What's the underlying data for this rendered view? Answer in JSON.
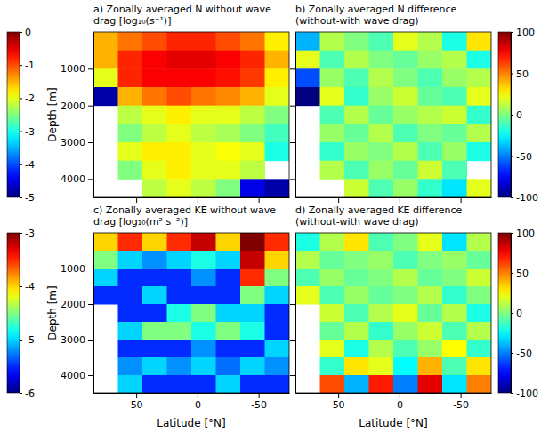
{
  "chart_data": [
    {
      "type": "heatmap",
      "title": "a) Zonally averaged N without wave drag [log₁₀(s⁻¹)]",
      "ylabel": "Depth [m]",
      "color": "jet",
      "tick_labels": "y",
      "xlim": [
        85,
        -75
      ],
      "ylim": [
        0,
        4500
      ],
      "xticks": [
        50,
        0,
        -50
      ],
      "yticks": [
        1000,
        2000,
        3000,
        4000
      ],
      "x": [
        75,
        55,
        35,
        15,
        -5,
        -25,
        -45,
        -65
      ],
      "y": [
        250,
        750,
        1250,
        1750,
        2250,
        2750,
        3250,
        3750,
        4250
      ],
      "z": [
        [
          -1.5,
          -1.2,
          -1.0,
          -0.8,
          -0.8,
          -1.0,
          -1.2,
          -1.8
        ],
        [
          -1.5,
          -0.8,
          -0.6,
          -0.5,
          -0.5,
          -0.6,
          -0.8,
          -1.5
        ],
        [
          -2.0,
          -0.8,
          -0.6,
          -0.6,
          -0.6,
          -0.7,
          -0.9,
          -1.8
        ],
        [
          -4.8,
          -1.5,
          -1.2,
          -1.0,
          -1.2,
          -1.3,
          -1.5,
          -2.0
        ],
        [
          null,
          -2.2,
          -2.0,
          -1.8,
          -2.0,
          -2.0,
          -2.2,
          -2.5
        ],
        [
          null,
          -2.5,
          -2.2,
          -2.0,
          -2.2,
          -2.3,
          -2.5,
          -2.8
        ],
        [
          null,
          -2.0,
          -1.8,
          -1.8,
          -2.0,
          -1.9,
          -2.0,
          -3.0
        ],
        [
          null,
          -2.5,
          -2.0,
          -1.8,
          -2.0,
          -2.0,
          -2.2,
          null
        ],
        [
          null,
          null,
          -2.2,
          -2.0,
          -2.2,
          -2.5,
          -4.5,
          -4.8
        ]
      ],
      "colorbar": {
        "range": [
          -5,
          0
        ],
        "ticks": [
          -5,
          -4,
          -3,
          -2,
          -1,
          0
        ]
      }
    },
    {
      "type": "heatmap",
      "title": "b) Zonally averaged N difference (without-with wave drag)",
      "color": "jet",
      "tick_labels": false,
      "xlim": [
        85,
        -75
      ],
      "ylim": [
        0,
        4500
      ],
      "xticks": [
        50,
        0,
        -50
      ],
      "yticks": [
        1000,
        2000,
        3000,
        4000
      ],
      "x": [
        75,
        55,
        35,
        15,
        -5,
        -25,
        -45,
        -65
      ],
      "y": [
        250,
        750,
        1250,
        1750,
        2250,
        2750,
        3250,
        3750,
        4250
      ],
      "z": [
        [
          -40,
          10,
          0,
          -10,
          20,
          10,
          -20,
          30
        ],
        [
          20,
          -10,
          10,
          0,
          -5,
          5,
          10,
          -20
        ],
        [
          -60,
          5,
          -10,
          10,
          0,
          -10,
          5,
          10
        ],
        [
          -100,
          20,
          -15,
          5,
          15,
          -5,
          -10,
          20
        ],
        [
          null,
          -10,
          10,
          -5,
          5,
          10,
          15,
          -15
        ],
        [
          null,
          5,
          -5,
          10,
          -10,
          0,
          -5,
          10
        ],
        [
          null,
          -15,
          5,
          0,
          10,
          -10,
          5,
          -20
        ],
        [
          null,
          10,
          -10,
          5,
          -5,
          15,
          -10,
          null
        ],
        [
          null,
          null,
          15,
          -10,
          5,
          -15,
          -30,
          20
        ]
      ],
      "colorbar": {
        "range": [
          -100,
          100
        ],
        "ticks": [
          -100,
          -50,
          0,
          50,
          100
        ]
      }
    },
    {
      "type": "heatmap",
      "title": "c) Zonally averaged KE without wave drag [log₁₀(m² s⁻²)]",
      "xlabel": "Latitude [°N]",
      "ylabel": "Depth [m]",
      "color": "jet",
      "xlim": [
        85,
        -75
      ],
      "ylim": [
        0,
        4500
      ],
      "xticks": [
        50,
        0,
        -50
      ],
      "yticks": [
        1000,
        2000,
        3000,
        4000
      ],
      "x": [
        75,
        55,
        35,
        15,
        -5,
        -25,
        -45,
        -65
      ],
      "y": [
        250,
        750,
        1250,
        1750,
        2250,
        2750,
        3250,
        3750,
        4250
      ],
      "z": [
        [
          -4.0,
          -3.5,
          -4.0,
          -3.5,
          -3.2,
          -4.0,
          -3.0,
          -3.5
        ],
        [
          -4.5,
          -5.0,
          -5.2,
          -5.0,
          -4.8,
          -5.0,
          -3.2,
          -4.0
        ],
        [
          -5.0,
          -5.5,
          -5.5,
          -5.5,
          -5.2,
          -5.5,
          -3.5,
          -4.5
        ],
        [
          -5.5,
          -5.5,
          -5.0,
          -5.5,
          -5.5,
          -5.5,
          -4.5,
          -5.0
        ],
        [
          null,
          -5.5,
          -5.5,
          -4.8,
          -4.5,
          -5.0,
          -5.0,
          -5.5
        ],
        [
          null,
          -5.0,
          -4.5,
          -4.5,
          -4.8,
          -4.5,
          -4.8,
          -5.5
        ],
        [
          null,
          -5.5,
          -5.5,
          -5.5,
          -5.2,
          -5.5,
          -5.5,
          -5.0
        ],
        [
          null,
          -5.2,
          -5.0,
          -5.2,
          -5.0,
          -5.3,
          -5.0,
          -5.2
        ],
        [
          null,
          -5.0,
          -5.5,
          -5.5,
          -5.5,
          -5.0,
          -5.5,
          -5.5
        ]
      ],
      "colorbar": {
        "range": [
          -6,
          -3
        ],
        "ticks": [
          -6,
          -5,
          -4,
          -3
        ]
      }
    },
    {
      "type": "heatmap",
      "title": "d) Zonally averaged KE difference (without-with wave drag)",
      "xlabel": "Latitude [°N]",
      "color": "jet",
      "tick_labels": "x",
      "xlim": [
        85,
        -75
      ],
      "ylim": [
        0,
        4500
      ],
      "xticks": [
        50,
        0,
        -50
      ],
      "yticks": [
        1000,
        2000,
        3000,
        4000
      ],
      "x": [
        75,
        55,
        35,
        15,
        -5,
        -25,
        -45,
        -65
      ],
      "y": [
        250,
        750,
        1250,
        1750,
        2250,
        2750,
        3250,
        3750,
        4250
      ],
      "z": [
        [
          -20,
          10,
          30,
          -10,
          0,
          20,
          -30,
          10
        ],
        [
          10,
          -5,
          0,
          5,
          -10,
          0,
          5,
          -5
        ],
        [
          -10,
          5,
          -5,
          0,
          10,
          -5,
          0,
          15
        ],
        [
          20,
          -10,
          5,
          -5,
          0,
          10,
          -15,
          0
        ],
        [
          null,
          15,
          -10,
          10,
          20,
          -5,
          10,
          -20
        ],
        [
          null,
          -5,
          10,
          -15,
          5,
          15,
          -10,
          10
        ],
        [
          null,
          20,
          -20,
          10,
          -10,
          5,
          25,
          -15
        ],
        [
          null,
          -15,
          30,
          20,
          -25,
          40,
          -10,
          30
        ],
        [
          null,
          60,
          -40,
          70,
          -50,
          80,
          -30,
          50
        ]
      ],
      "colorbar": {
        "range": [
          -100,
          100
        ],
        "ticks": [
          -100,
          -50,
          0,
          50,
          100
        ]
      }
    }
  ]
}
